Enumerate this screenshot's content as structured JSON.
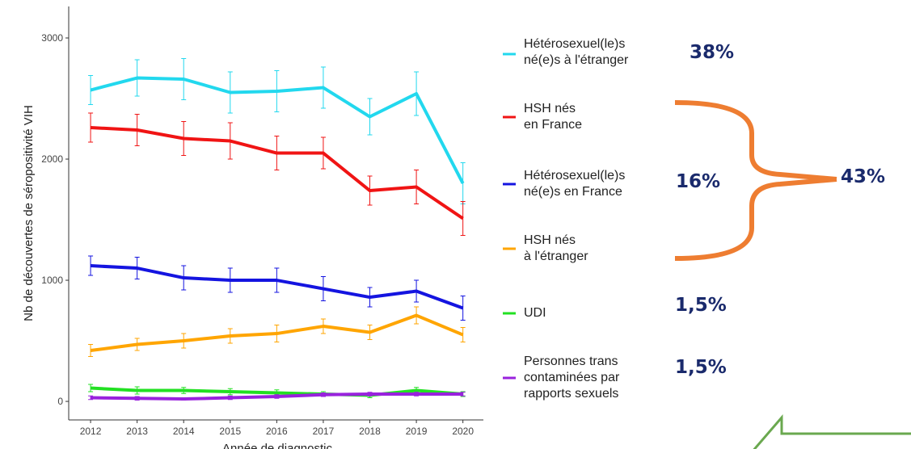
{
  "chart_data": {
    "type": "line",
    "y_label": "Nb de découvertes de séropositivité VIH",
    "x_label": "Année de diagnostic",
    "x": [
      2012,
      2013,
      2014,
      2015,
      2016,
      2017,
      2018,
      2019,
      2020
    ],
    "xlim": [
      2011.53,
      2020.44
    ],
    "xticks": [
      2012,
      2013,
      2014,
      2015,
      2016,
      2017,
      2018,
      2019,
      2020
    ],
    "ylim": [
      -153,
      3260
    ],
    "yticks": [
      0,
      1000,
      2000,
      3000
    ],
    "series": [
      {
        "name": "Hétérosexuel(le)s\nné(e)s à l'étranger",
        "color": "#22d8ee",
        "values": [
          2570,
          2670,
          2660,
          2550,
          2560,
          2590,
          2350,
          2540,
          1800
        ],
        "errors": [
          120,
          150,
          170,
          170,
          170,
          170,
          150,
          180,
          170
        ]
      },
      {
        "name": "HSH nés\nen France",
        "color": "#f01414",
        "values": [
          2260,
          2240,
          2170,
          2150,
          2050,
          2050,
          1740,
          1770,
          1510
        ],
        "errors": [
          120,
          130,
          140,
          150,
          140,
          130,
          120,
          140,
          140
        ]
      },
      {
        "name": "Hétérosexuel(le)s\nné(e)s en France",
        "color": "#1414e0",
        "values": [
          1120,
          1100,
          1020,
          1000,
          1000,
          930,
          860,
          910,
          770
        ],
        "errors": [
          80,
          90,
          100,
          100,
          100,
          100,
          80,
          90,
          100
        ]
      },
      {
        "name": "HSH nés\nà l'étranger",
        "color": "#ffa500",
        "values": [
          420,
          470,
          500,
          540,
          560,
          620,
          570,
          710,
          550
        ],
        "errors": [
          50,
          50,
          60,
          60,
          70,
          60,
          60,
          70,
          60
        ]
      },
      {
        "name": "UDI",
        "color": "#22e022",
        "values": [
          110,
          90,
          90,
          80,
          70,
          60,
          50,
          90,
          60
        ],
        "errors": [
          30,
          30,
          25,
          25,
          25,
          20,
          20,
          25,
          20
        ]
      },
      {
        "name": "Personnes trans\ncontaminées par\nrapports sexuels",
        "color": "#9922dd",
        "values": [
          30,
          25,
          20,
          30,
          40,
          55,
          60,
          60,
          60
        ],
        "errors": [
          15,
          15,
          10,
          15,
          15,
          15,
          15,
          15,
          15
        ]
      }
    ],
    "annotations": [
      "38%",
      "16%",
      "43%",
      "1,5%",
      "1,5%"
    ]
  }
}
